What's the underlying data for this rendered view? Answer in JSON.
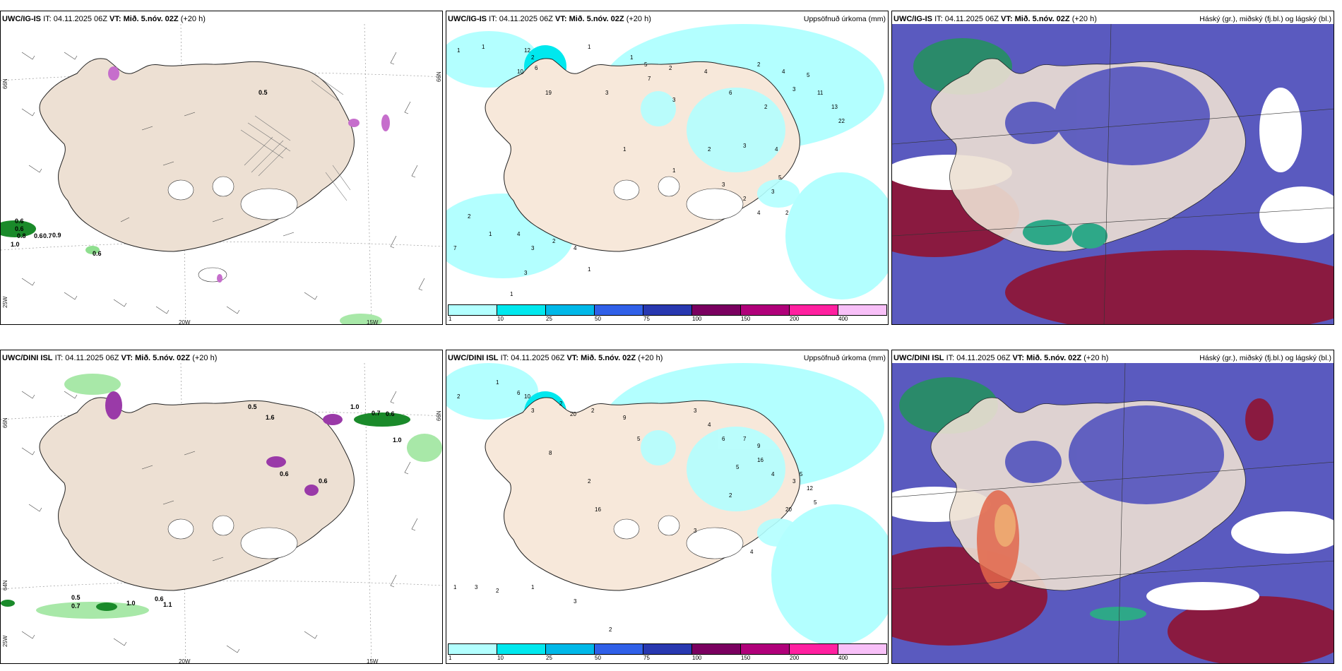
{
  "panels": [
    {
      "model": "UWC/IG-IS",
      "it": "IT: 04.11.2025 06Z",
      "vt_label": "VT:",
      "vt": "Mið. 5.nóv. 02Z",
      "lead": "(+20 h)",
      "right": ""
    },
    {
      "model": "UWC/IG-IS",
      "it": "IT: 04.11.2025 06Z",
      "vt_label": "VT:",
      "vt": "Mið. 5.nóv. 02Z",
      "lead": "(+20 h)",
      "right": "Uppsöfnuð úrkoma (mm)"
    },
    {
      "model": "UWC/IG-IS",
      "it": "IT: 04.11.2025 06Z",
      "vt_label": "VT:",
      "vt": "Mið. 5.nóv. 02Z",
      "lead": "(+20 h)",
      "right": "Háský (gr.), miðský (fj.bl.) og lágský (bl.)"
    },
    {
      "model": "UWC/DINI ISL",
      "it": "IT: 04.11.2025 06Z",
      "vt_label": "VT:",
      "vt": "Mið. 5.nóv. 02Z",
      "lead": "(+20 h)",
      "right": ""
    },
    {
      "model": "UWC/DINI ISL",
      "it": "IT: 04.11.2025 06Z",
      "vt_label": "VT:",
      "vt": "Mið. 5.nóv. 02Z",
      "lead": "(+20 h)",
      "right": "Uppsöfnuð úrkoma (mm)"
    },
    {
      "model": "UWC/DINI ISL",
      "it": "IT: 04.11.2025 06Z",
      "vt_label": "VT:",
      "vt": "Mið. 5.nóv. 02Z",
      "lead": "(+20 h)",
      "right": "Háský (gr.), miðský (fj.bl.) og lágský (bl.)"
    }
  ],
  "axis": {
    "lat66": "66N",
    "lat64": "64N",
    "lon20": "20W",
    "lon15": "15W",
    "lon25": "25W",
    "lat66r": "66N"
  },
  "colorbar": {
    "labels": [
      "1",
      "10",
      "25",
      "50",
      "75",
      "100",
      "150",
      "200",
      "400"
    ],
    "colors": [
      "#b3ffff",
      "#00e8ee",
      "#00b8e8",
      "#3060e8",
      "#2838b0",
      "#7a0060",
      "#b0007a",
      "#ff20a0",
      "#f8c0f8"
    ]
  },
  "precip_top": [
    "1",
    "1",
    "2",
    "12",
    "10",
    "6",
    "19",
    "1",
    "1",
    "3",
    "5",
    "7",
    "2",
    "3",
    "4",
    "6",
    "2",
    "2",
    "3",
    "4",
    "5",
    "11",
    "13",
    "22",
    "3",
    "4",
    "5",
    "1",
    "1",
    "2",
    "3",
    "2",
    "4",
    "3",
    "2",
    "7",
    "2",
    "1",
    "4",
    "3",
    "2",
    "4",
    "1",
    "3",
    "1",
    "1"
  ],
  "precip_bottom": [
    "2",
    "1",
    "6",
    "10",
    "3",
    "2",
    "20",
    "2",
    "8",
    "9",
    "5",
    "3",
    "4",
    "6",
    "7",
    "9",
    "16",
    "5",
    "4",
    "3",
    "20",
    "5",
    "12",
    "5",
    "2",
    "16",
    "3",
    "2",
    "4",
    "1",
    "3",
    "2",
    "1",
    "3",
    "2"
  ],
  "wind_labels_top": [
    "0.5",
    "0.6",
    "0.6",
    "0.8",
    "0.6",
    "0.7",
    "0.9",
    "1.0",
    "0.6"
  ],
  "wind_labels_bottom": [
    "0.5",
    "1.6",
    "1.0",
    "0.7",
    "0.6",
    "1.0",
    "0.6",
    "0.6",
    "0.5",
    "0.7",
    "1.0",
    "0.6",
    "1.1"
  ]
}
